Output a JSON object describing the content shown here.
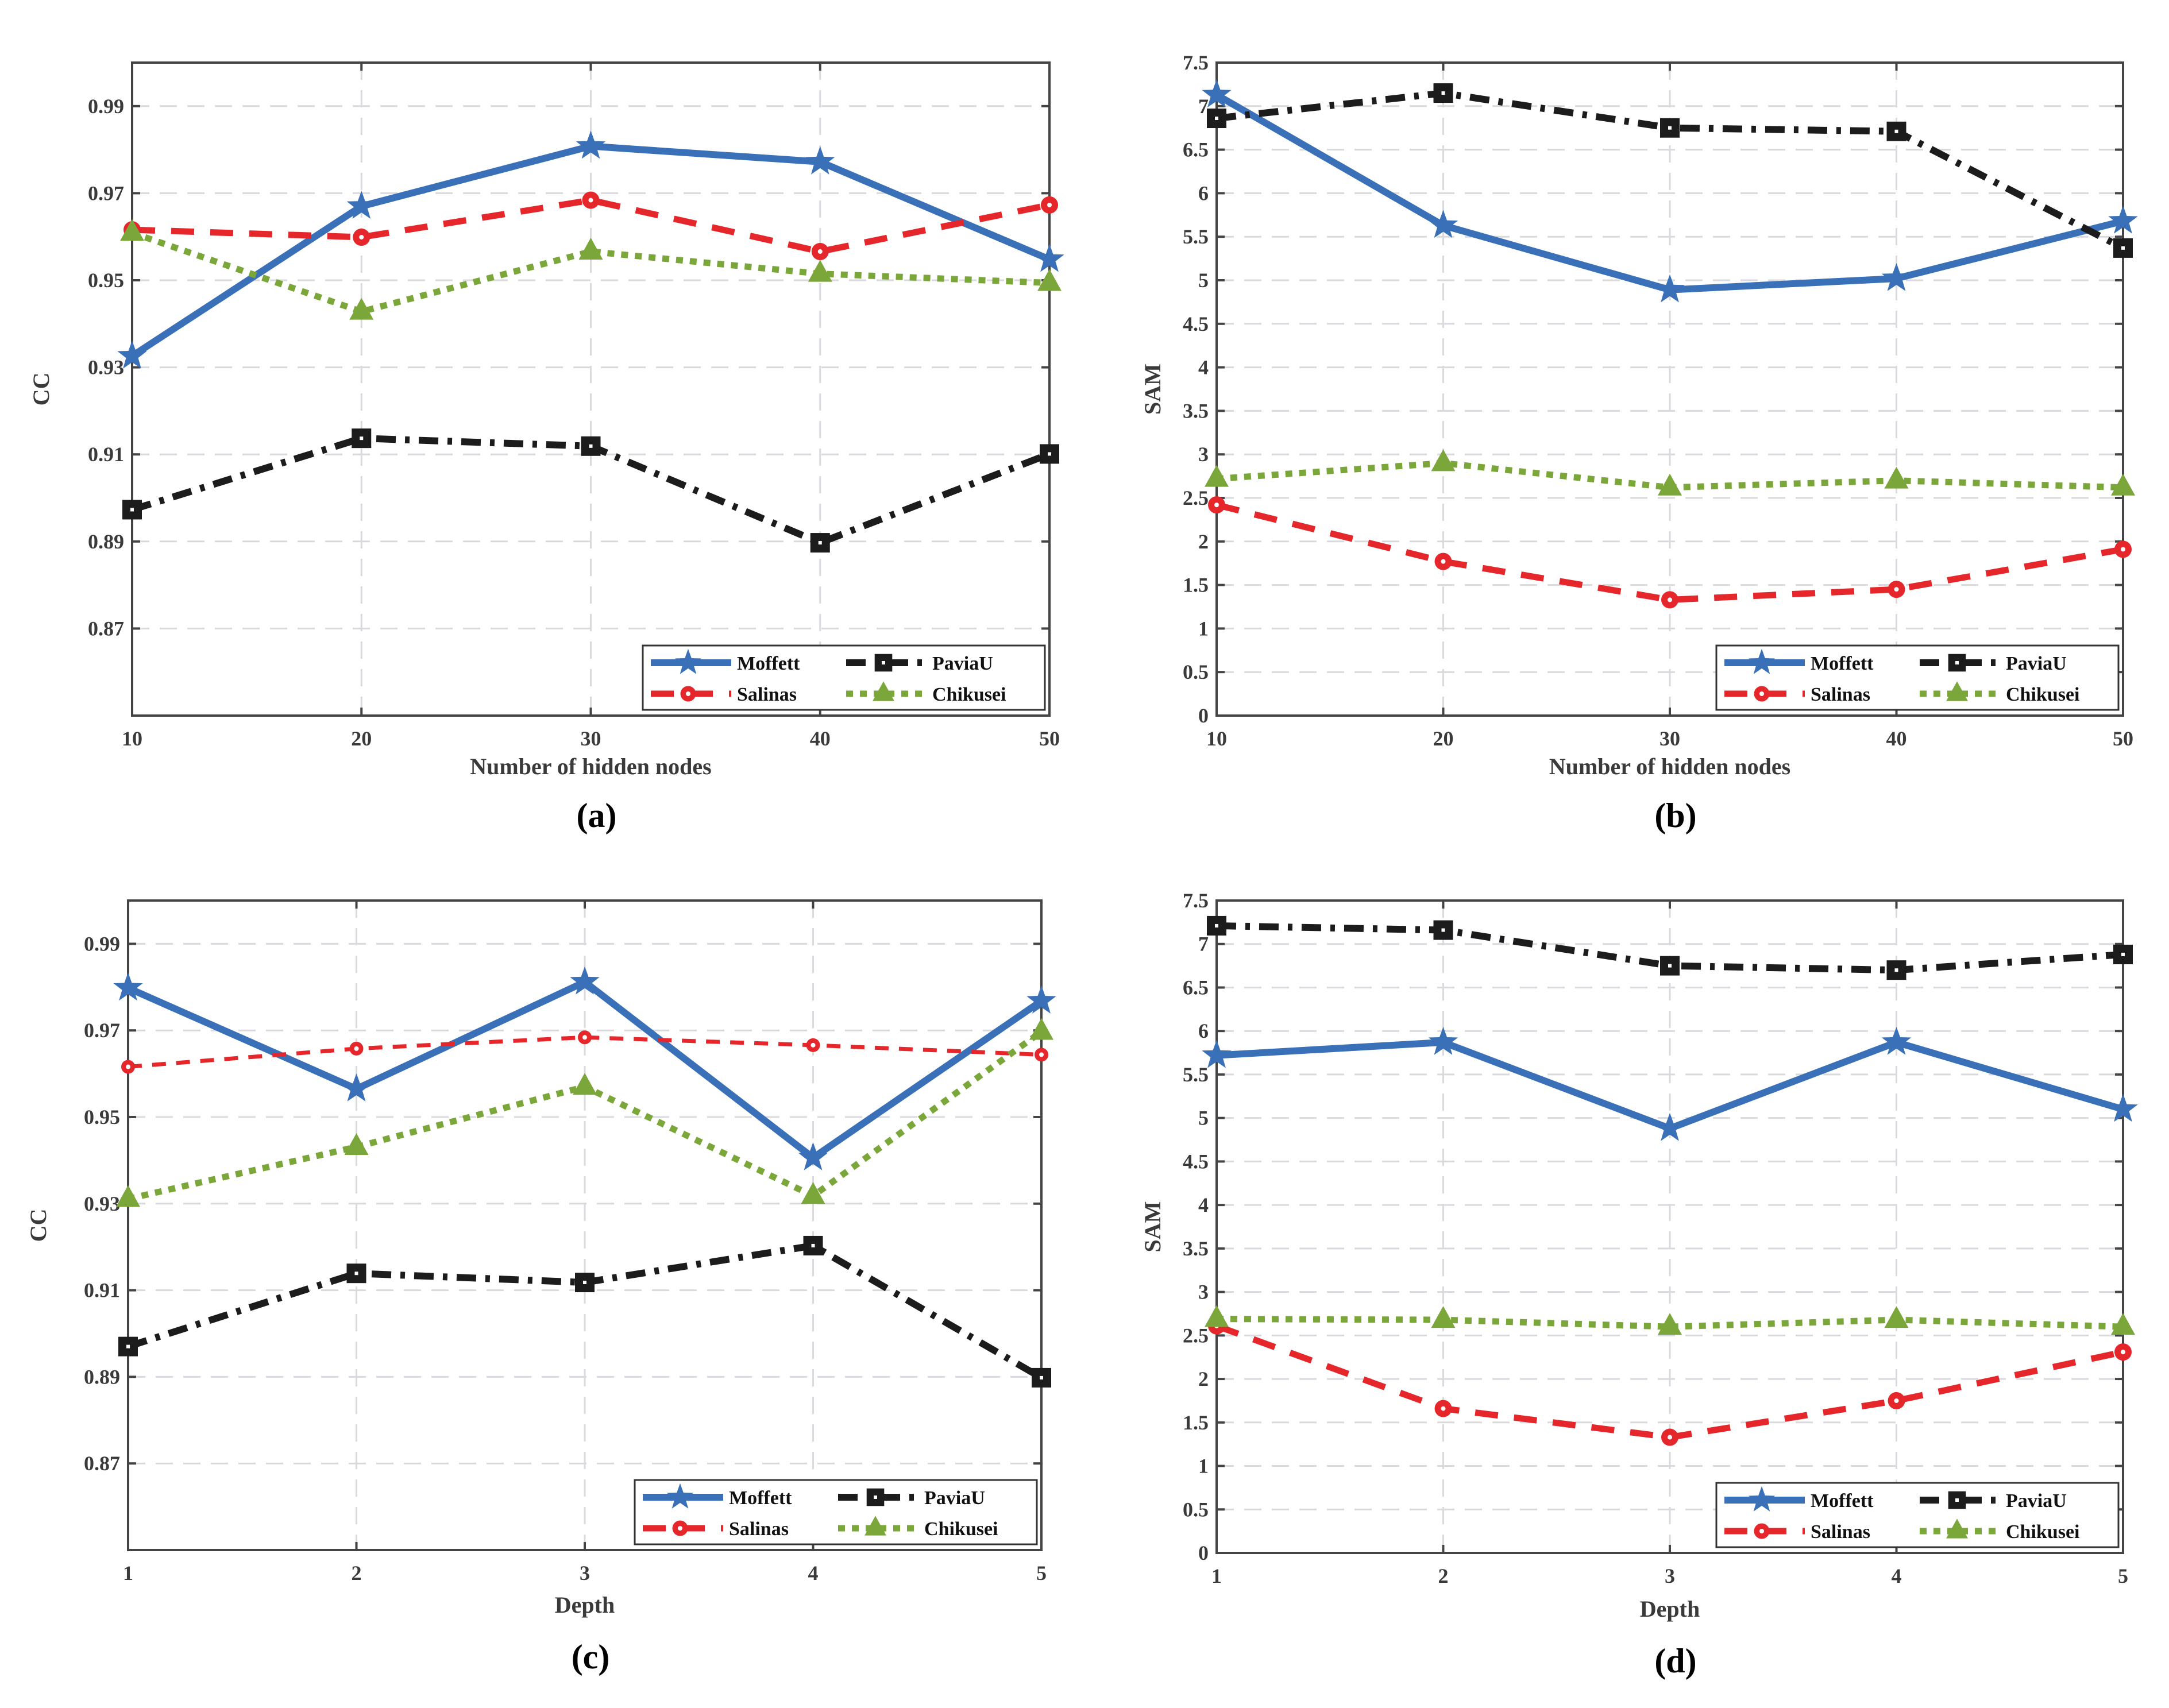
{
  "colors": {
    "Moffett": "#3a70b8",
    "Salinas": "#e5272b",
    "PaviaU": "#1c1c1c",
    "Chikusei": "#7aa63a",
    "grid": "#d9d9de",
    "axis": "#444444"
  },
  "legend_order": [
    "Moffett",
    "PaviaU",
    "Salinas",
    "Chikusei"
  ],
  "chart_data": [
    {
      "type": "line",
      "panel_label": "(a)",
      "title": "",
      "xlabel": "Number of hidden nodes",
      "ylabel": "CC",
      "x": [
        10,
        20,
        30,
        40,
        50
      ],
      "xticklabels": [
        "10",
        "20",
        "30",
        "40",
        "50"
      ],
      "ylim": [
        0.85,
        1.0
      ],
      "yticks": [
        0.87,
        0.89,
        0.91,
        0.93,
        0.95,
        0.97,
        0.99
      ],
      "yticklabels": [
        "0.87",
        "0.89",
        "0.91",
        "0.93",
        "0.95",
        "0.97",
        "0.99"
      ],
      "grid": true,
      "legend_position": "bottom-right",
      "series": [
        {
          "name": "Moffett",
          "values": [
            0.9326,
            0.967,
            0.9808,
            0.9772,
            0.9548
          ]
        },
        {
          "name": "PaviaU",
          "values": [
            0.8973,
            0.9137,
            0.9119,
            0.8897,
            0.9101
          ]
        },
        {
          "name": "Salinas",
          "values": [
            0.9616,
            0.9599,
            0.9684,
            0.9566,
            0.9673
          ]
        },
        {
          "name": "Chikusei",
          "values": [
            0.9609,
            0.9428,
            0.9566,
            0.9515,
            0.9494
          ]
        }
      ]
    },
    {
      "type": "line",
      "panel_label": "(b)",
      "title": "",
      "xlabel": "Number of hidden nodes",
      "ylabel": "SAM",
      "x": [
        10,
        20,
        30,
        40,
        50
      ],
      "xticklabels": [
        "10",
        "20",
        "30",
        "40",
        "50"
      ],
      "ylim": [
        0,
        7.5
      ],
      "yticks": [
        0,
        0.5,
        1,
        1.5,
        2,
        2.5,
        3,
        3.5,
        4,
        4.5,
        5,
        5.5,
        6,
        6.5,
        7,
        7.5
      ],
      "yticklabels": [
        "0",
        "0.5",
        "1",
        "1.5",
        "2",
        "2.5",
        "3",
        "3.5",
        "4",
        "4.5",
        "5",
        "5.5",
        "6",
        "6.5",
        "7",
        "7.5"
      ],
      "grid": true,
      "legend_position": "bottom-right",
      "series": [
        {
          "name": "Moffett",
          "values": [
            7.13,
            5.63,
            4.89,
            5.02,
            5.68
          ]
        },
        {
          "name": "PaviaU",
          "values": [
            6.86,
            7.15,
            6.75,
            6.71,
            5.37
          ]
        },
        {
          "name": "Salinas",
          "values": [
            2.42,
            1.77,
            1.33,
            1.45,
            1.91
          ]
        },
        {
          "name": "Chikusei",
          "values": [
            2.72,
            2.9,
            2.62,
            2.7,
            2.62
          ]
        }
      ]
    },
    {
      "type": "line",
      "panel_label": "(c)",
      "title": "",
      "xlabel": "Depth",
      "ylabel": "CC",
      "x": [
        1,
        2,
        3,
        4,
        5
      ],
      "xticklabels": [
        "1",
        "2",
        "3",
        "4",
        "5"
      ],
      "ylim": [
        0.85,
        1.0
      ],
      "yticks": [
        0.87,
        0.89,
        0.91,
        0.93,
        0.95,
        0.97,
        0.99
      ],
      "yticklabels": [
        "0.87",
        "0.89",
        "0.91",
        "0.93",
        "0.95",
        "0.97",
        "0.99"
      ],
      "grid": true,
      "legend_position": "bottom-right",
      "series": [
        {
          "name": "Moffett",
          "values": [
            0.9798,
            0.9565,
            0.9812,
            0.9406,
            0.9768
          ]
        },
        {
          "name": "PaviaU",
          "values": [
            0.897,
            0.9139,
            0.9118,
            0.9203,
            0.8898
          ]
        },
        {
          "name": "Salinas",
          "values": [
            0.9616,
            0.9658,
            0.9684,
            0.9666,
            0.9644
          ]
        },
        {
          "name": "Chikusei",
          "values": [
            0.9311,
            0.9431,
            0.957,
            0.9318,
            0.9697
          ]
        }
      ]
    },
    {
      "type": "line",
      "panel_label": "(d)",
      "title": "",
      "xlabel": "Depth",
      "ylabel": "SAM",
      "x": [
        1,
        2,
        3,
        4,
        5
      ],
      "xticklabels": [
        "1",
        "2",
        "3",
        "4",
        "5"
      ],
      "ylim": [
        0,
        7.5
      ],
      "yticks": [
        0,
        0.5,
        1,
        1.5,
        2,
        2.5,
        3,
        3.5,
        4,
        4.5,
        5,
        5.5,
        6,
        6.5,
        7,
        7.5
      ],
      "yticklabels": [
        "0",
        "0.5",
        "1",
        "1.5",
        "2",
        "2.5",
        "3",
        "3.5",
        "4",
        "4.5",
        "5",
        "5.5",
        "6",
        "6.5",
        "7",
        "7.5"
      ],
      "grid": true,
      "legend_position": "bottom-right",
      "series": [
        {
          "name": "Moffett",
          "values": [
            5.72,
            5.87,
            4.88,
            5.87,
            5.1
          ]
        },
        {
          "name": "PaviaU",
          "values": [
            7.21,
            7.16,
            6.75,
            6.7,
            6.88
          ]
        },
        {
          "name": "Salinas",
          "values": [
            2.61,
            1.66,
            1.33,
            1.75,
            2.31
          ]
        },
        {
          "name": "Chikusei",
          "values": [
            2.69,
            2.68,
            2.6,
            2.68,
            2.6
          ]
        }
      ]
    }
  ]
}
